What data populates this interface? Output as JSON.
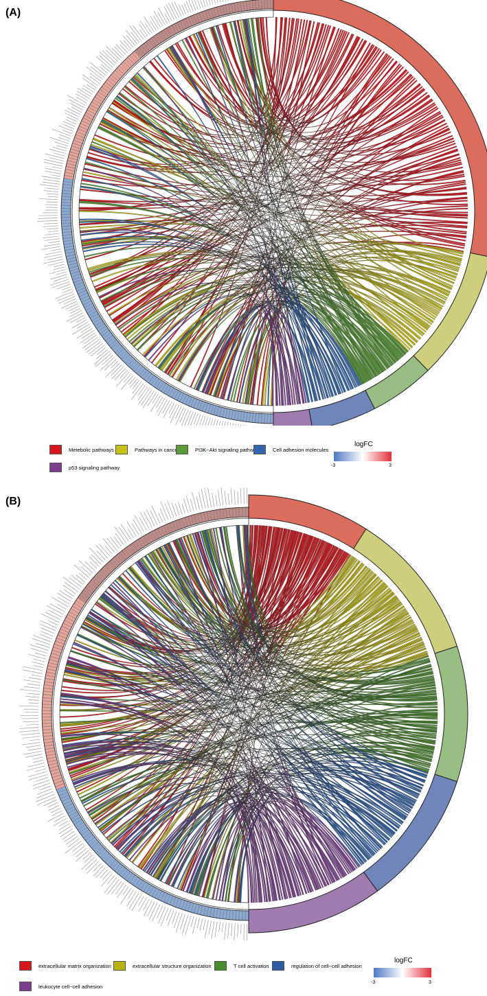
{
  "panels": [
    {
      "label": "(A)",
      "categories": [
        {
          "name": "Metebolic pathways",
          "color": "#d8141c",
          "outer": "#dc6d5c",
          "weight": 0.3
        },
        {
          "name": "Pathways in cancer",
          "color": "#c7c215",
          "outer": "#cdcf7d",
          "weight": 0.1
        },
        {
          "name": "PI3K−Akt signaling pathway",
          "color": "#5a9a39",
          "outer": "#97bd83",
          "weight": 0.05
        },
        {
          "name": "Cell adhesion molecules",
          "color": "#3267b0",
          "outer": "#7086bb",
          "weight": 0.05
        },
        {
          "name": "p53 signaling pathway",
          "color": "#7b3e8f",
          "outer": "#a07bb0",
          "weight": 0.03
        }
      ],
      "logfc": {
        "title": "logFC",
        "min": "-3",
        "max": "3"
      }
    },
    {
      "label": "(B)",
      "categories": [
        {
          "name": "extracellular matrix organization",
          "color": "#d8141c",
          "outer": "#dc6d5c",
          "weight": 0.09
        },
        {
          "name": "extracellular structure organization",
          "color": "#b9b310",
          "outer": "#cdcf7d",
          "weight": 0.11
        },
        {
          "name": "T cell activation",
          "color": "#4a8a2e",
          "outer": "#97bd83",
          "weight": 0.1
        },
        {
          "name": "regulation of cell−cell adhesion",
          "color": "#2c5da3",
          "outer": "#7086bb",
          "weight": 0.1
        },
        {
          "name": "leukocyte cell−cell adhesion",
          "color": "#7b3e8f",
          "outer": "#a07bb0",
          "weight": 0.1
        }
      ],
      "logfc": {
        "title": "logFC",
        "min": "-3",
        "max": "3"
      }
    }
  ]
}
